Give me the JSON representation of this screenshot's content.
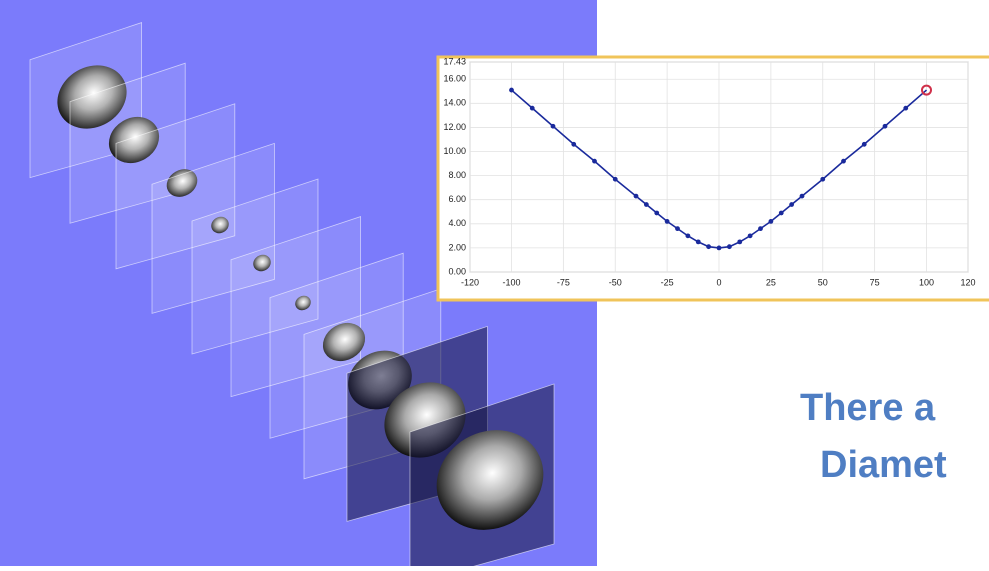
{
  "chart_data": {
    "type": "line",
    "x": [
      -100,
      -90,
      -80,
      -70,
      -60,
      -50,
      -40,
      -35,
      -30,
      -25,
      -20,
      -15,
      -10,
      -5,
      0,
      5,
      10,
      15,
      20,
      25,
      30,
      35,
      40,
      50,
      60,
      70,
      80,
      90,
      100
    ],
    "series": [
      {
        "color": "#1a2a9c",
        "values": [
          15.1,
          13.6,
          12.1,
          10.6,
          9.2,
          7.7,
          6.3,
          5.6,
          4.9,
          4.2,
          3.6,
          3.0,
          2.5,
          2.1,
          2.0,
          2.1,
          2.5,
          3.0,
          3.6,
          4.2,
          4.9,
          5.6,
          6.3,
          7.7,
          9.2,
          10.6,
          12.1,
          13.6,
          15.1
        ]
      }
    ],
    "highlight_index": 28,
    "highlight_color": "#d0304a",
    "xlim": [
      -120,
      120
    ],
    "xticks": [
      -120,
      -100,
      -75,
      -50,
      -25,
      0,
      25,
      50,
      75,
      100,
      120
    ],
    "ylim": [
      0,
      17.43
    ],
    "yticks": [
      {
        "value": 0,
        "label": "0.00"
      },
      {
        "value": 2,
        "label": "2.00"
      },
      {
        "value": 4,
        "label": "4.00"
      },
      {
        "value": 6,
        "label": "6.00"
      },
      {
        "value": 8,
        "label": "8.00"
      },
      {
        "value": 10,
        "label": "10.00"
      },
      {
        "value": 12,
        "label": "12.00"
      },
      {
        "value": 14,
        "label": "14.00"
      },
      {
        "value": 16,
        "label": "16.00"
      },
      17.43
    ],
    "grid": true
  },
  "caption": [
    "There a",
    "Diamet"
  ]
}
